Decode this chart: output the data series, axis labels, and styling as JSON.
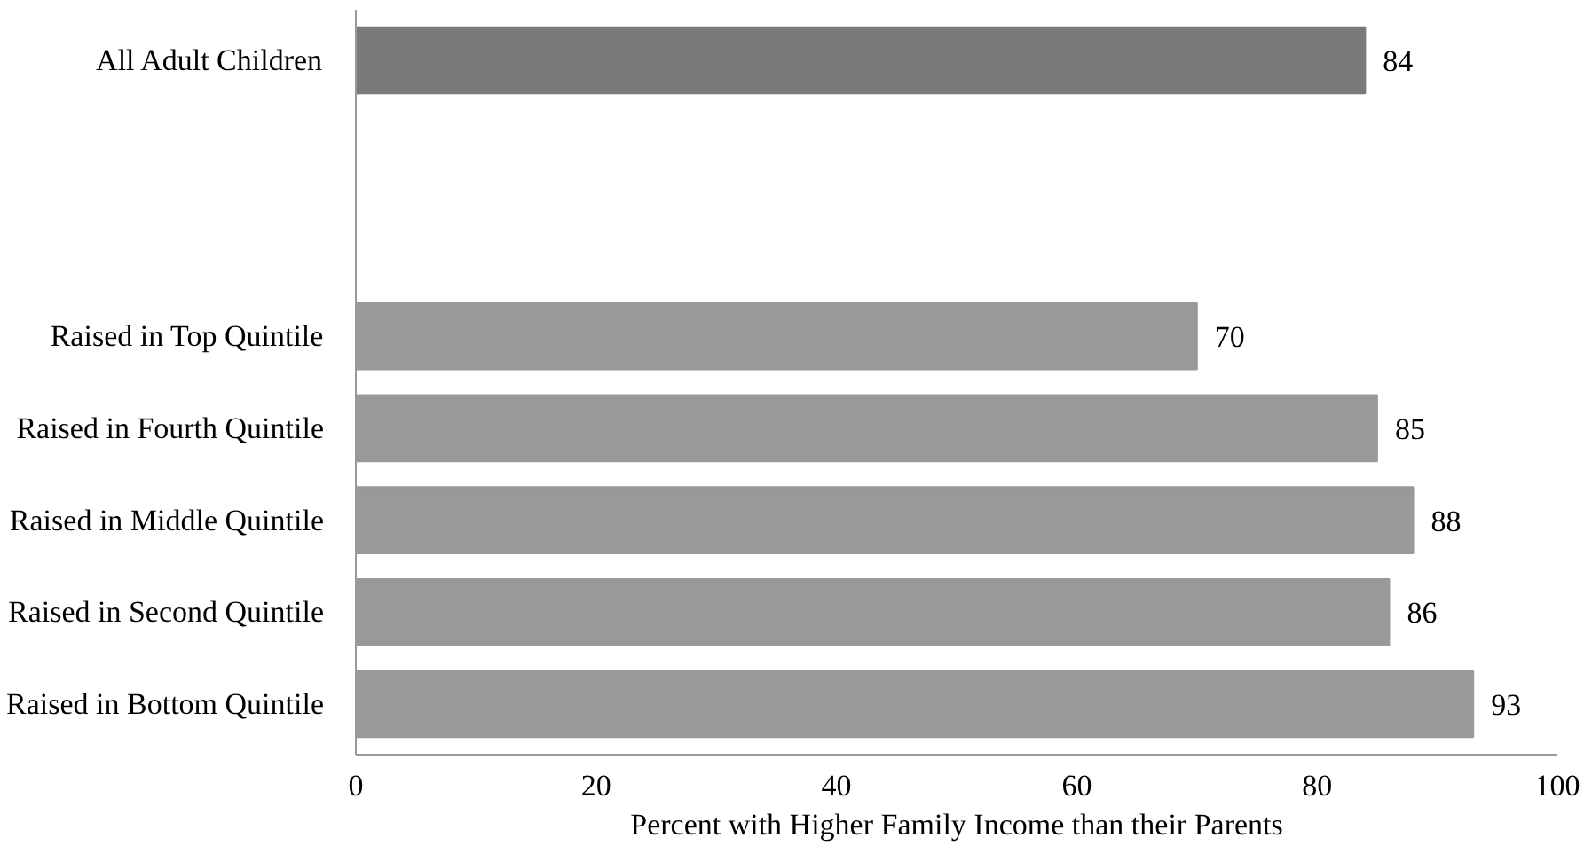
{
  "chart_data": {
    "type": "bar",
    "orientation": "horizontal",
    "xlabel": "Percent with Higher Family Income than their Parents",
    "categories": [
      "All Adult Children",
      null,
      null,
      "Raised in Top Quintile",
      "Raised in Fourth Quintile",
      "Raised in Middle Quintile",
      "Raised in Second Quintile",
      "Raised in Bottom Quintile"
    ],
    "values": [
      84,
      null,
      null,
      70,
      85,
      88,
      86,
      93
    ],
    "colors": [
      "#7a7a7a",
      "#999999",
      "#999999",
      "#999999",
      "#999999",
      "#999999",
      "#999999",
      "#999999"
    ],
    "xlim": [
      0,
      100
    ],
    "xticks": [
      0,
      20,
      40,
      60,
      80,
      100
    ],
    "data_labels": true,
    "grid": false
  }
}
